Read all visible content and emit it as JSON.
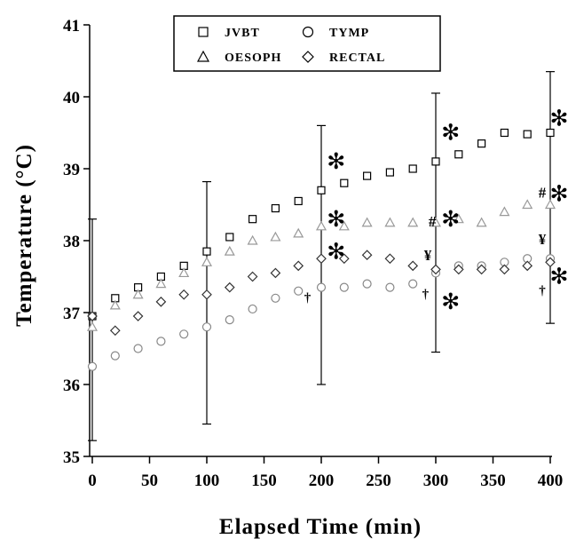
{
  "chart_data": {
    "type": "scatter",
    "title": "",
    "xlabel": "Elapsed Time (min)",
    "ylabel": "Temperature (°C)",
    "xlim": [
      0,
      400
    ],
    "ylim": [
      35,
      41
    ],
    "xticks": [
      0,
      50,
      100,
      150,
      200,
      250,
      300,
      350,
      400
    ],
    "yticks": [
      35,
      36,
      37,
      38,
      39,
      40,
      41
    ],
    "legend_position": "top-center",
    "grid": false,
    "series": [
      {
        "name": "JVBT",
        "marker": "square",
        "color": "#000000",
        "x": [
          0,
          20,
          40,
          60,
          80,
          100,
          120,
          140,
          160,
          180,
          200,
          220,
          240,
          260,
          280,
          300,
          320,
          340,
          360,
          380,
          400
        ],
        "y": [
          36.95,
          37.2,
          37.35,
          37.5,
          37.65,
          37.85,
          38.05,
          38.3,
          38.45,
          38.55,
          38.7,
          38.8,
          38.9,
          38.95,
          39.0,
          39.1,
          39.2,
          39.35,
          39.5,
          39.48,
          39.5
        ]
      },
      {
        "name": "TYMP",
        "marker": "circle",
        "color": "#888888",
        "x": [
          0,
          20,
          40,
          60,
          80,
          100,
          120,
          140,
          160,
          180,
          200,
          220,
          240,
          260,
          280,
          300,
          320,
          340,
          360,
          380,
          400
        ],
        "y": [
          36.25,
          36.4,
          36.5,
          36.6,
          36.7,
          36.8,
          36.9,
          37.05,
          37.2,
          37.3,
          37.35,
          37.35,
          37.4,
          37.35,
          37.4,
          37.55,
          37.65,
          37.65,
          37.7,
          37.75,
          37.75
        ]
      },
      {
        "name": "OESOPH",
        "marker": "triangle",
        "color": "#999999",
        "x": [
          0,
          20,
          40,
          60,
          80,
          100,
          120,
          140,
          160,
          180,
          200,
          220,
          240,
          260,
          280,
          300,
          320,
          340,
          360,
          380,
          400
        ],
        "y": [
          36.8,
          37.1,
          37.25,
          37.4,
          37.55,
          37.7,
          37.85,
          38.0,
          38.05,
          38.1,
          38.2,
          38.2,
          38.25,
          38.25,
          38.25,
          38.25,
          38.3,
          38.25,
          38.4,
          38.5,
          38.5
        ]
      },
      {
        "name": "RECTAL",
        "marker": "diamond",
        "color": "#333333",
        "x": [
          0,
          20,
          40,
          60,
          80,
          100,
          120,
          140,
          160,
          180,
          200,
          220,
          240,
          260,
          280,
          300,
          320,
          340,
          360,
          380,
          400
        ],
        "y": [
          36.95,
          36.75,
          36.95,
          37.15,
          37.25,
          37.25,
          37.35,
          37.5,
          37.55,
          37.65,
          37.75,
          37.75,
          37.8,
          37.75,
          37.65,
          37.6,
          37.6,
          37.6,
          37.6,
          37.65,
          37.7
        ]
      }
    ],
    "error_bars": [
      {
        "x": 0,
        "low": 35.22,
        "high": 38.3
      },
      {
        "x": 100,
        "low": 35.45,
        "high": 38.82
      },
      {
        "x": 200,
        "low": 36.0,
        "high": 39.6
      },
      {
        "x": 300,
        "low": 36.45,
        "high": 40.05
      },
      {
        "x": 400,
        "low": 36.85,
        "high": 40.35
      }
    ],
    "annotations": [
      {
        "text": "✻",
        "x": 213,
        "y": 39.0,
        "size": 25
      },
      {
        "text": "✻",
        "x": 213,
        "y": 38.2,
        "size": 25
      },
      {
        "text": "✻",
        "x": 213,
        "y": 37.75,
        "size": 25
      },
      {
        "text": "✻",
        "x": 313,
        "y": 39.4,
        "size": 25
      },
      {
        "text": "#",
        "x": 297,
        "y": 38.2,
        "size": 17
      },
      {
        "text": "✻",
        "x": 313,
        "y": 38.2,
        "size": 25
      },
      {
        "text": "¥",
        "x": 293,
        "y": 37.73,
        "size": 17
      },
      {
        "text": "†",
        "x": 291,
        "y": 37.2,
        "size": 15
      },
      {
        "text": "✻",
        "x": 313,
        "y": 37.05,
        "size": 25
      },
      {
        "text": "†",
        "x": 188,
        "y": 37.15,
        "size": 15
      },
      {
        "text": "✻",
        "x": 413,
        "y": 39.6,
        "size": 25
      },
      {
        "text": "#",
        "x": 393,
        "y": 38.6,
        "size": 17
      },
      {
        "text": "✻",
        "x": 413,
        "y": 38.55,
        "size": 25
      },
      {
        "text": "¥",
        "x": 393,
        "y": 37.95,
        "size": 17
      },
      {
        "text": "†",
        "x": 393,
        "y": 37.25,
        "size": 15
      },
      {
        "text": "✻",
        "x": 413,
        "y": 37.4,
        "size": 25
      }
    ]
  }
}
